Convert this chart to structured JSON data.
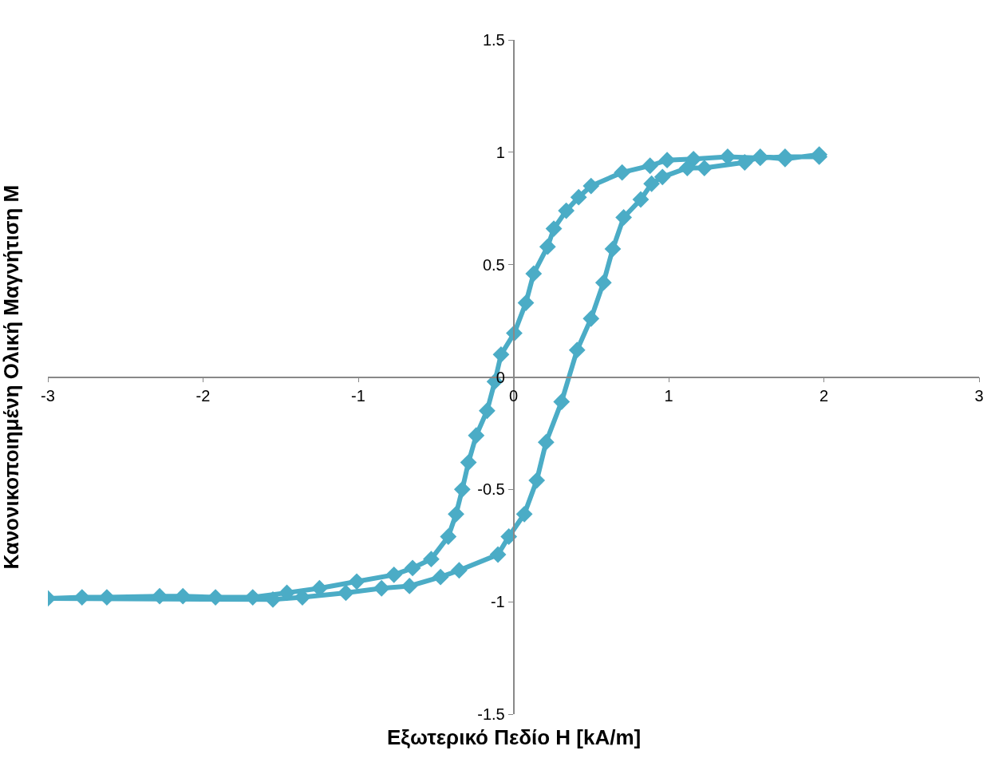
{
  "chart_data": {
    "type": "line",
    "xlabel": "Εξωτερικό Πεδίο Η [kA/m]",
    "ylabel": "Κανονικοποιημένη Ολική Μαγνήτιση Μ",
    "series": [
      {
        "color": "#4bacc6",
        "marker": "diamond",
        "x": [
          1.97,
          1.75,
          1.59,
          1.38,
          1.16,
          0.99,
          0.88,
          0.7,
          0.5,
          0.42,
          0.34,
          0.26,
          0.22,
          0.13,
          0.08,
          0.005,
          -0.08,
          -0.12,
          -0.17,
          -0.24,
          -0.29,
          -0.33,
          -0.37,
          -0.42,
          -0.53,
          -0.65,
          -0.77,
          -1.01,
          -1.25,
          -1.46,
          -1.68,
          -1.92,
          -2.13,
          -2.28,
          -2.62,
          -2.78,
          -3.0,
          -1.55,
          -1.36,
          -1.08,
          -0.85,
          -0.67,
          -0.47,
          -0.35,
          -0.1,
          -0.03,
          0.07,
          0.15,
          0.21,
          0.31,
          0.41,
          0.5,
          0.58,
          0.64,
          0.71,
          0.82,
          0.89,
          0.96,
          1.12,
          1.23,
          1.49,
          1.59,
          1.75,
          1.97
        ],
        "values": [
          0.98,
          0.98,
          0.975,
          0.98,
          0.97,
          0.965,
          0.94,
          0.91,
          0.85,
          0.8,
          0.74,
          0.66,
          0.58,
          0.46,
          0.33,
          0.195,
          0.1,
          -0.02,
          -0.15,
          -0.26,
          -0.38,
          -0.5,
          -0.61,
          -0.71,
          -0.81,
          -0.85,
          -0.88,
          -0.91,
          -0.94,
          -0.96,
          -0.98,
          -0.98,
          -0.975,
          -0.975,
          -0.98,
          -0.98,
          -0.985,
          -0.99,
          -0.98,
          -0.96,
          -0.94,
          -0.93,
          -0.89,
          -0.86,
          -0.79,
          -0.71,
          -0.61,
          -0.46,
          -0.29,
          -0.11,
          0.12,
          0.26,
          0.42,
          0.57,
          0.71,
          0.79,
          0.86,
          0.89,
          0.93,
          0.93,
          0.955,
          0.98,
          0.97,
          0.99
        ]
      }
    ],
    "xlim": [
      -3,
      3
    ],
    "xticks": [
      -3,
      -2,
      -1,
      0,
      1,
      2,
      3
    ],
    "ylim": [
      -1.5,
      1.5
    ],
    "yticks": [
      -1.5,
      -1,
      -0.5,
      0,
      0.5,
      1,
      1.5
    ]
  }
}
